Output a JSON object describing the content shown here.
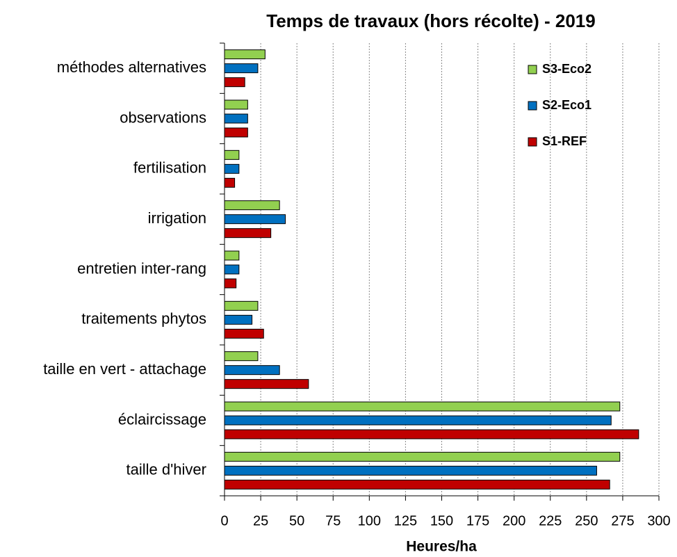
{
  "chart_data": {
    "type": "bar",
    "orientation": "horizontal",
    "title": "Temps de travaux (hors récolte) - 2019",
    "x_label": "Heures/ha",
    "categories": [
      "méthodes alternatives",
      "observations",
      "fertilisation",
      "irrigation",
      "entretien inter-rang",
      "traitements phytos",
      "taille en vert - attachage",
      "éclaircissage",
      "taille d'hiver"
    ],
    "series": [
      {
        "name": "S3-Eco2",
        "color": "#92d050",
        "values": [
          28,
          16,
          10,
          38,
          10,
          23,
          23,
          273,
          273
        ]
      },
      {
        "name": "S2-Eco1",
        "color": "#0070c0",
        "values": [
          23,
          16,
          10,
          42,
          10,
          19,
          38,
          267,
          257
        ]
      },
      {
        "name": "S1-REF",
        "color": "#c00000",
        "values": [
          14,
          16,
          7,
          32,
          8,
          27,
          58,
          286,
          266
        ]
      }
    ],
    "xlim": [
      0,
      300
    ],
    "xticks": [
      0,
      25,
      50,
      75,
      100,
      125,
      150,
      175,
      200,
      225,
      250,
      275,
      300
    ],
    "grid": true,
    "legend": "upper right"
  }
}
